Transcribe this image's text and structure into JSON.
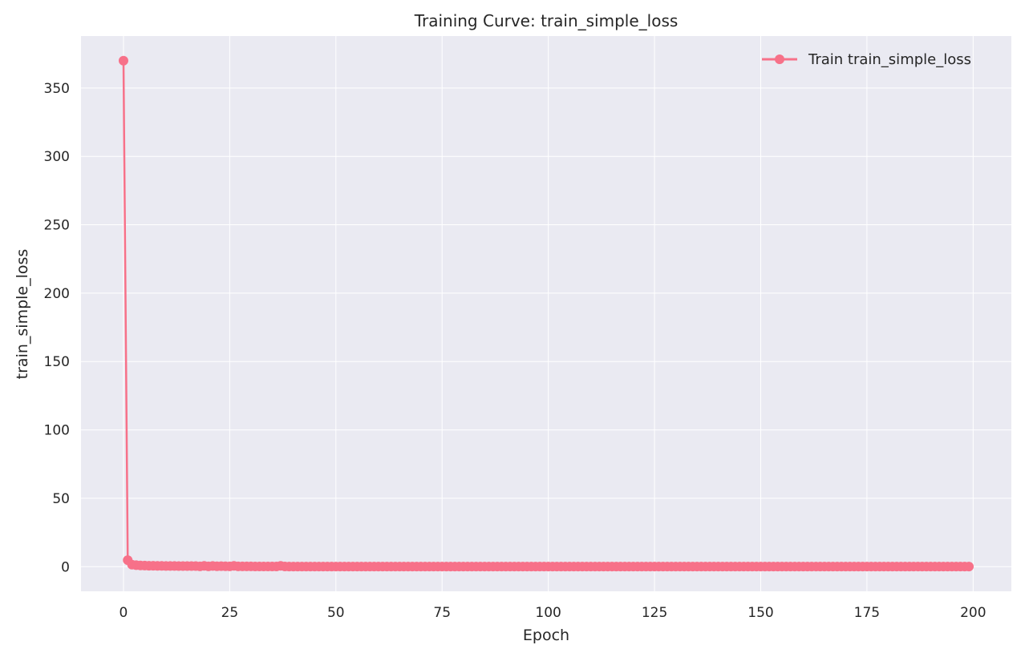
{
  "chart_data": {
    "type": "line",
    "title": "Training Curve: train_simple_loss",
    "xlabel": "Epoch",
    "ylabel": "train_simple_loss",
    "xlim": [
      -10,
      209
    ],
    "ylim": [
      -18,
      388
    ],
    "xticks": [
      0,
      25,
      50,
      75,
      100,
      125,
      150,
      175,
      200
    ],
    "yticks": [
      0,
      50,
      100,
      150,
      200,
      250,
      300,
      350
    ],
    "grid": true,
    "legend": {
      "placement": "top-right"
    },
    "colors": {
      "series": "#f77189",
      "plot_bg": "#eaeaf2",
      "grid": "#ffffff",
      "text": "#262626"
    },
    "series": [
      {
        "name": "Train train_simple_loss",
        "head": [
          370,
          4.8,
          1.5,
          1.1,
          0.9,
          0.8,
          0.7,
          0.65,
          0.6,
          0.58,
          0.55,
          0.52,
          0.5,
          0.48,
          0.46,
          0.45,
          0.44,
          0.43,
          0.2,
          0.6,
          0.25,
          0.55,
          0.3,
          0.35,
          0.3,
          0.25,
          0.6,
          0.2,
          0.22,
          0.2,
          0.2,
          0.19,
          0.19,
          0.18,
          0.18,
          0.17,
          0.17,
          0.6,
          0.16
        ],
        "tail_value": 0.1,
        "n_points": 200
      }
    ]
  }
}
